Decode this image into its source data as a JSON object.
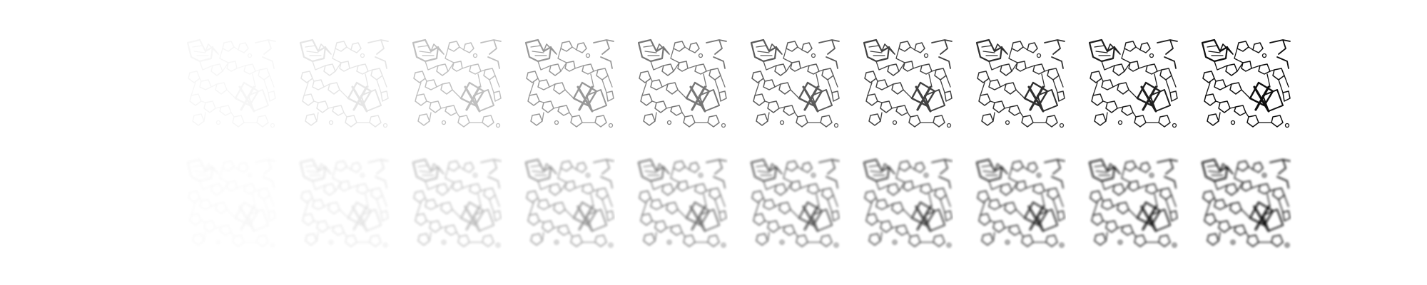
{
  "figure": {
    "rows": [
      {
        "name": "sharp",
        "style": "sharp"
      },
      {
        "name": "blurred",
        "style": "blurred"
      }
    ],
    "frames": [
      {
        "opacity": 0.03
      },
      {
        "opacity": 0.1
      },
      {
        "opacity": 0.26
      },
      {
        "opacity": 0.42
      },
      {
        "opacity": 0.56
      },
      {
        "opacity": 0.68
      },
      {
        "opacity": 0.78
      },
      {
        "opacity": 0.86
      },
      {
        "opacity": 0.93
      },
      {
        "opacity": 1.0
      }
    ],
    "colors": {
      "background": "#ffffff",
      "ink": "#111111"
    }
  }
}
